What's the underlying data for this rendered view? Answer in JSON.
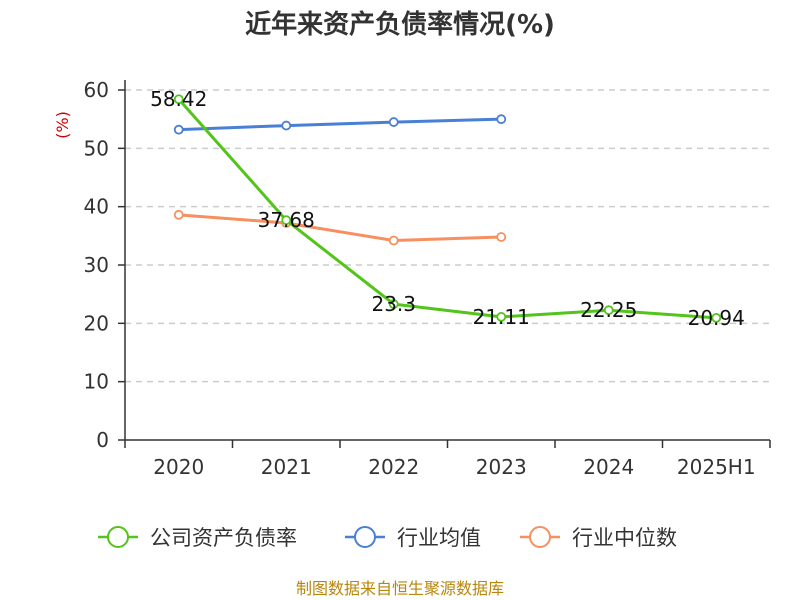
{
  "chart_data": {
    "type": "line",
    "title": "近年来资产负债率情况(%)",
    "ylabel": "(%)",
    "xlabel": "",
    "categories": [
      "2020",
      "2021",
      "2022",
      "2023",
      "2024",
      "2025H1"
    ],
    "ylim": [
      0,
      60
    ],
    "yticks": [
      0,
      10,
      20,
      30,
      40,
      50,
      60
    ],
    "grid": "horizontal-dashed",
    "legend_position": "bottom",
    "series": [
      {
        "name": "公司资产负债率",
        "color": "#52c41a",
        "values": [
          58.42,
          37.68,
          23.3,
          21.11,
          22.25,
          20.94
        ],
        "labels": [
          "58.42",
          "37.68",
          "23.3",
          "21.11",
          "22.25",
          "20.94"
        ]
      },
      {
        "name": "行业均值",
        "color": "#4a7fd6",
        "values": [
          53.2,
          53.9,
          54.5,
          55.0,
          null,
          null
        ]
      },
      {
        "name": "行业中位数",
        "color": "#f79060",
        "values": [
          38.6,
          37.2,
          34.2,
          34.8,
          null,
          null
        ]
      }
    ],
    "source": "制图数据来自恒生聚源数据库"
  }
}
